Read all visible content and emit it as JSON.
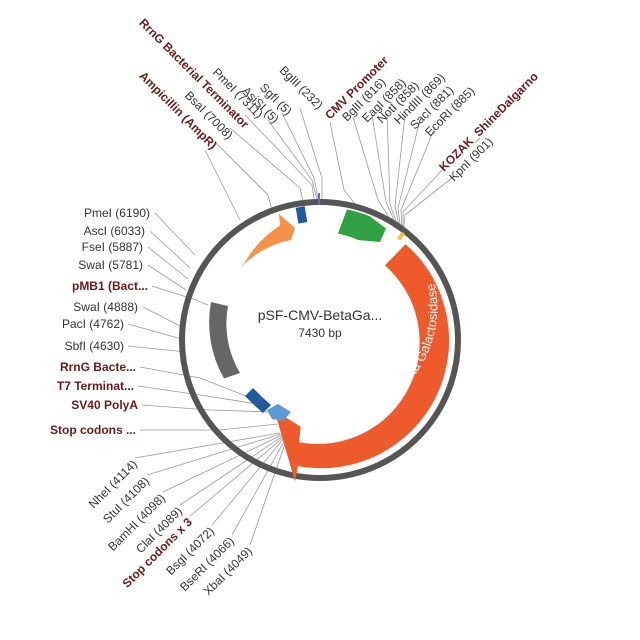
{
  "map": {
    "name": "pSF-CMV-BetaGa...",
    "length": "7430 bp",
    "ring_color": "#555555"
  },
  "features": {
    "beta_gal": {
      "label": "Beta Galactosidase",
      "color": "#ee5a2c"
    },
    "cmv": {
      "color": "#2fa343"
    },
    "ampr": {
      "color": "#f5924a"
    },
    "pmb1": {
      "color": "#666666"
    },
    "terminator_color": "#1e5a9c",
    "sv40_color": "#5b9bd5"
  },
  "labels_upper": {
    "rrng": "RrnG Bacterial Terminator",
    "pmei": "PmeI (7311)",
    "bsai": "BsaI (7008)",
    "ampr": "Ampicillin (AmpR)",
    "asisi": "AsiSI (5)",
    "sgfi": "SgfI (5)",
    "bglii": "BglII (232)",
    "cmv": "CMV Promoter",
    "bglii2": "BglII (816)",
    "eagi": "EagI (858)",
    "noti": "NotI (858)",
    "hindiii": "HindIII (869)",
    "saci": "SacI (881)",
    "ecori": "EcoRI (885)",
    "kozak": "KOZAK_ShineDalgarno",
    "kpni": "KpnI (901)"
  },
  "labels_left": {
    "pmei2": "PmeI (6190)",
    "asci": "AscI (6033)",
    "fsei": "FseI (5887)",
    "swai": "SwaI (5781)",
    "pmb1": "pMB1 (Bact...",
    "swai2": "SwaI (4888)",
    "paci": "PacI (4762)",
    "sbfi": "SbfI (4630)",
    "rrng2": "RrnG Bacte...",
    "t7": "T7 Terminat...",
    "sv40": "SV40 PolyA",
    "stop1": "Stop codons ..."
  },
  "labels_lower": {
    "nhei": "NheI (4114)",
    "stui": "StuI (4108)",
    "bamhi": "BamHI (4098)",
    "clai": "ClaI (4089)",
    "stop3": "Stop codons x 3",
    "bsgi": "BsgI (4072)",
    "bseri": "BseRI (4066)",
    "xbai": "XbaI (4049)"
  }
}
